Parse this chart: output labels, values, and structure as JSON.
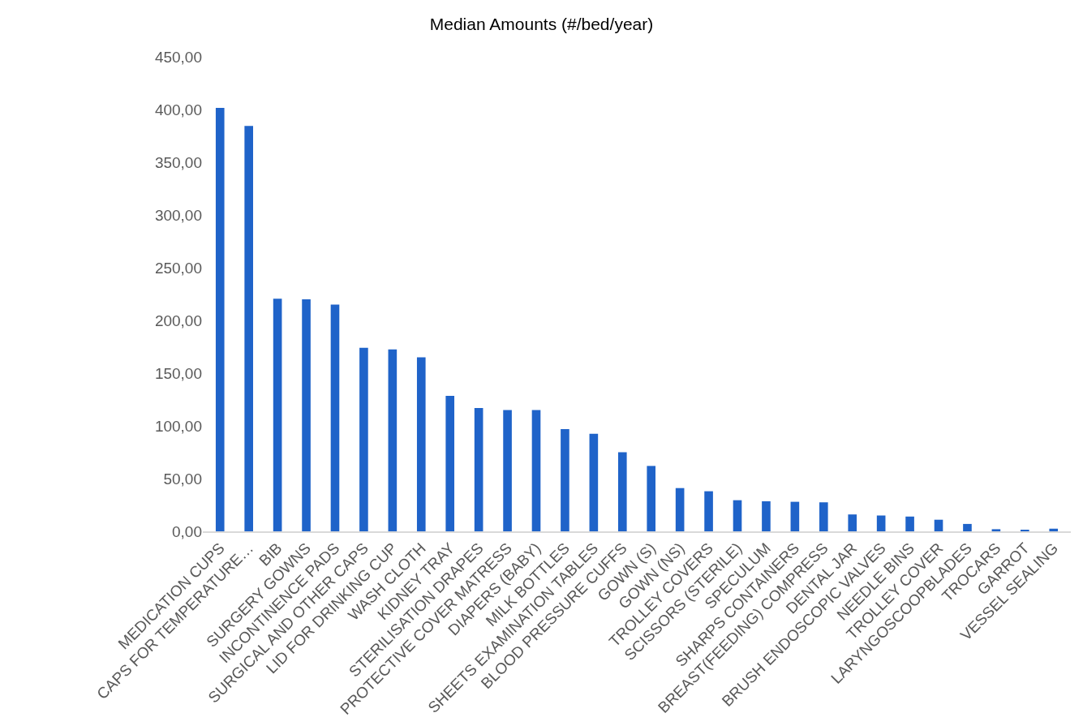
{
  "chart_data": {
    "type": "bar",
    "title": "Median Amounts (#/bed/year)",
    "categories": [
      "MEDICATION CUPS",
      "CAPS FOR TEMPERATURE…",
      "BIB",
      "SURGERY GOWNS",
      "INCONTINENCE PADS",
      "SURGICAL AND OTHER CAPS",
      "LID FOR DRINKING CUP",
      "WASH CLOTH",
      "KIDNEY TRAY",
      "STERILISATION DRAPES",
      "PROTECTIVE COVER MATRESS",
      "DIAPERS (BABY)",
      "MILK BOTTLES",
      "SHEETS EXAMINATION TABLES",
      "BLOOD PRESSURE CUFFS",
      "GOWN (S)",
      "GOWN (NS)",
      "TROLLEY COVERS",
      "SCISSORS (STERILE)",
      "SPECULUM",
      "SHARPS CONTAINERS",
      "BREAST(FEEDING) COMPRESS",
      "DENTAL JAR",
      "BRUSH ENDOSCOPIC VALVES",
      "NEEDLE BINS",
      "TROLLEY COVER",
      "LARYNGOSCOOPBLADES",
      "TROCARS",
      "GARROT",
      "VESSEL SEALING"
    ],
    "values": [
      401.5,
      384.5,
      220.5,
      220,
      215,
      174,
      172.5,
      165,
      128.5,
      117,
      115,
      115,
      97,
      92.5,
      75,
      62,
      41,
      38,
      29.5,
      28.5,
      28,
      27.5,
      16,
      15,
      14,
      11,
      7,
      2,
      1,
      2.5
    ],
    "color": "#1f63c9",
    "ylim": [
      0,
      450
    ],
    "yticks": [
      {
        "value": 0,
        "label": "0,00"
      },
      {
        "value": 50,
        "label": "50,00"
      },
      {
        "value": 100,
        "label": "100,00"
      },
      {
        "value": 150,
        "label": "150,00"
      },
      {
        "value": 200,
        "label": "200,00"
      },
      {
        "value": 250,
        "label": "250,00"
      },
      {
        "value": 300,
        "label": "300,00"
      },
      {
        "value": 350,
        "label": "350,00"
      },
      {
        "value": 400,
        "label": "400,00"
      },
      {
        "value": 450,
        "label": "450,00"
      }
    ],
    "grid": false,
    "legend": false
  }
}
